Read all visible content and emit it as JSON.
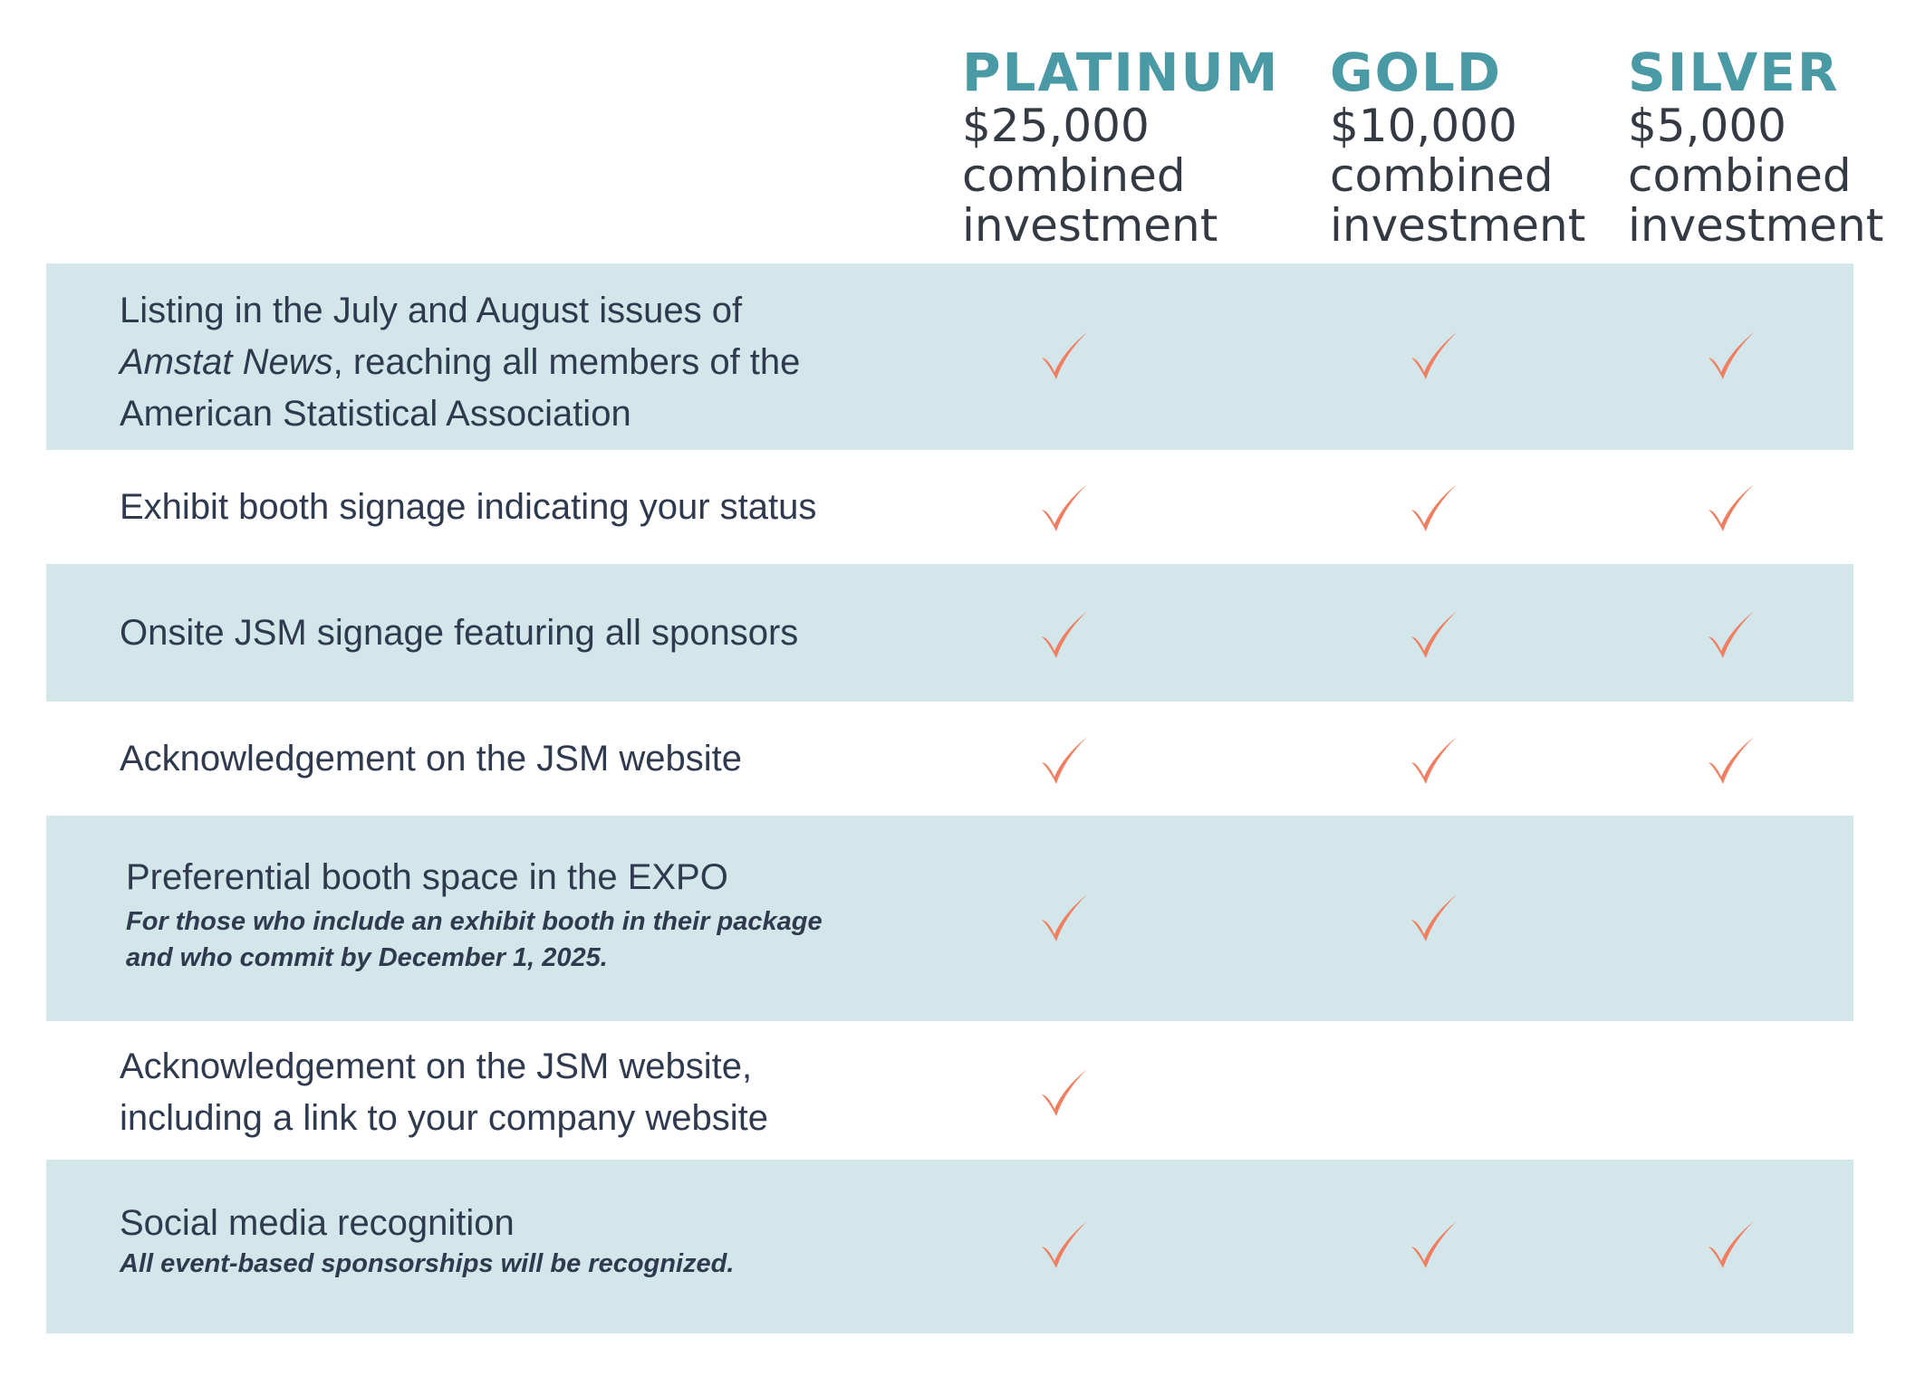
{
  "tiers": [
    {
      "name": "PLATINUM",
      "price": "$25,000",
      "desc": "combined\ninvestment"
    },
    {
      "name": "GOLD",
      "price": "$10,000",
      "desc": "combined\ninvestment"
    },
    {
      "name": "SILVER",
      "price": "$5,000",
      "desc": "combined\ninvestment"
    }
  ],
  "rows": [
    {
      "label_a": "Listing in the July and August issues of ",
      "label_b": "Amstat News",
      "label_c": ", reaching all members of the American Statistical Association",
      "checks": [
        true,
        true,
        true
      ]
    },
    {
      "label": "Exhibit booth signage indicating your status",
      "checks": [
        true,
        true,
        true
      ]
    },
    {
      "label": "Onsite JSM signage featuring all sponsors",
      "checks": [
        true,
        true,
        true
      ]
    },
    {
      "label": "Acknowledgement on the JSM website",
      "checks": [
        true,
        true,
        true
      ]
    },
    {
      "label": "Preferential booth space in the EXPO",
      "note": "For those who include an exhibit booth in their package and who commit by December 1, 2025.",
      "checks": [
        true,
        true,
        false
      ]
    },
    {
      "label": "Acknowledgement on the JSM website, including a link to your company website",
      "checks": [
        true,
        false,
        false
      ]
    },
    {
      "label": "Social media recognition",
      "note": "All event-based sponsorships will be recognized.",
      "checks": [
        true,
        true,
        true
      ]
    }
  ],
  "icons": {
    "check": "checkmark-icon"
  },
  "colors": {
    "tier_name": "#4a9aa6",
    "row_shade": "#d3e6ea",
    "check": "#f07f62",
    "text": "#2f3a4f"
  }
}
